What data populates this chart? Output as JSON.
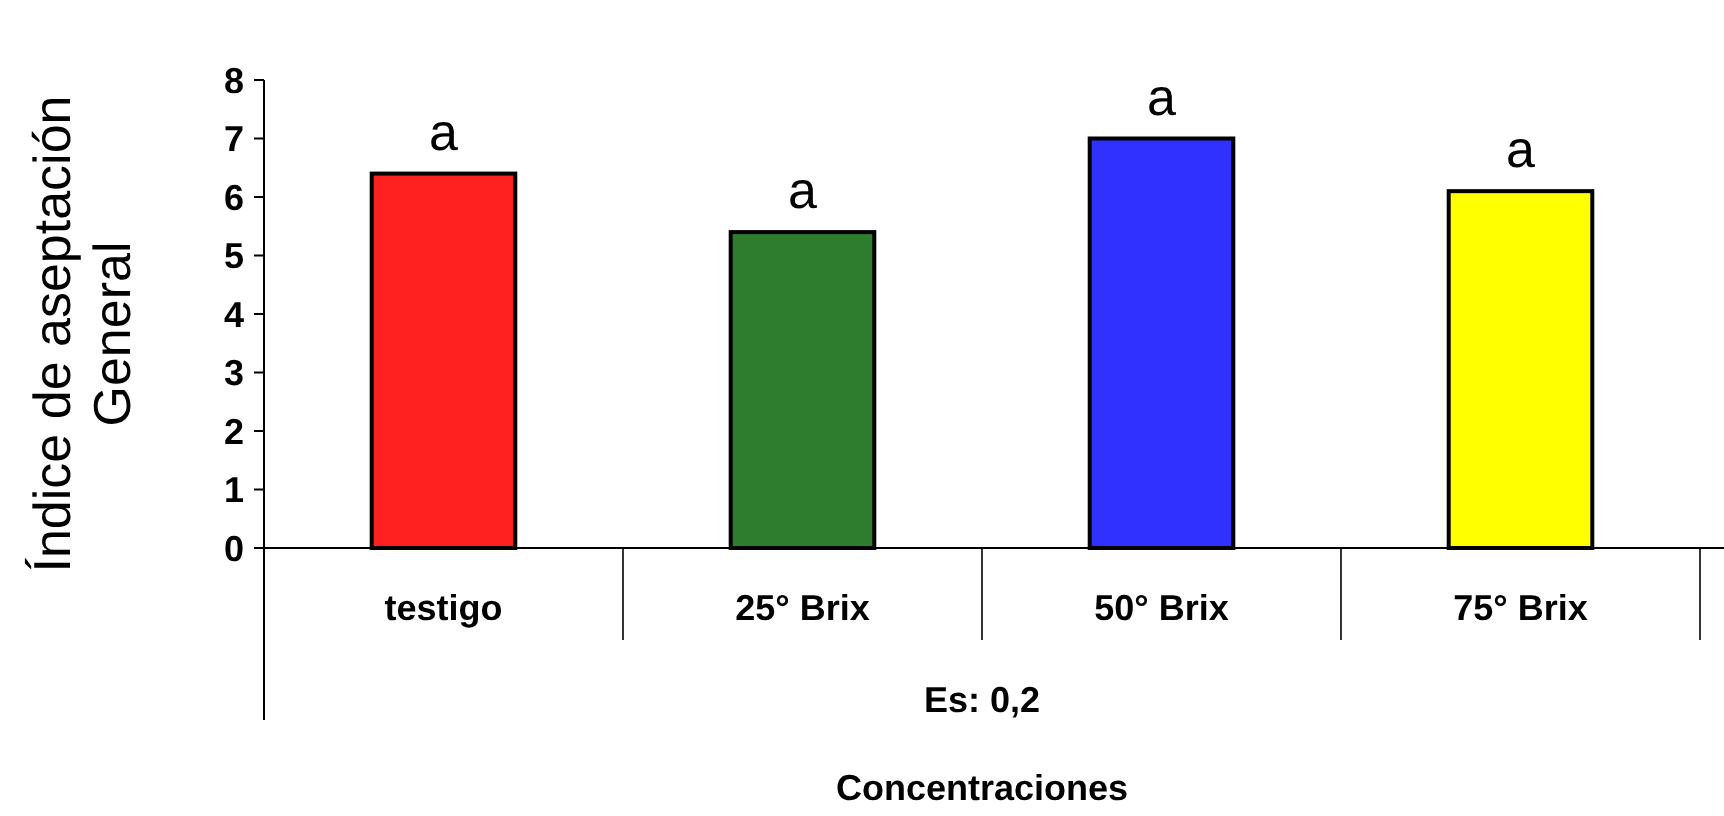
{
  "chart_data": {
    "type": "bar",
    "categories": [
      "testigo",
      "25° Brix",
      "50° Brix",
      "75° Brix"
    ],
    "values": [
      6.4,
      5.4,
      7.0,
      6.1
    ],
    "colors": [
      "#ff2020",
      "#2e7d2e",
      "#3030ff",
      "#ffff00"
    ],
    "value_labels": [
      "a",
      "a",
      "a",
      "a"
    ],
    "ylim": [
      0,
      8
    ],
    "yticks": [
      0,
      1,
      2,
      3,
      4,
      5,
      6,
      7,
      8
    ],
    "ylabel": "Índice de aseptación\nGeneral",
    "xlabel": "Concentraciones",
    "annotations": [
      "Es: 0,2"
    ],
    "grid": false
  }
}
